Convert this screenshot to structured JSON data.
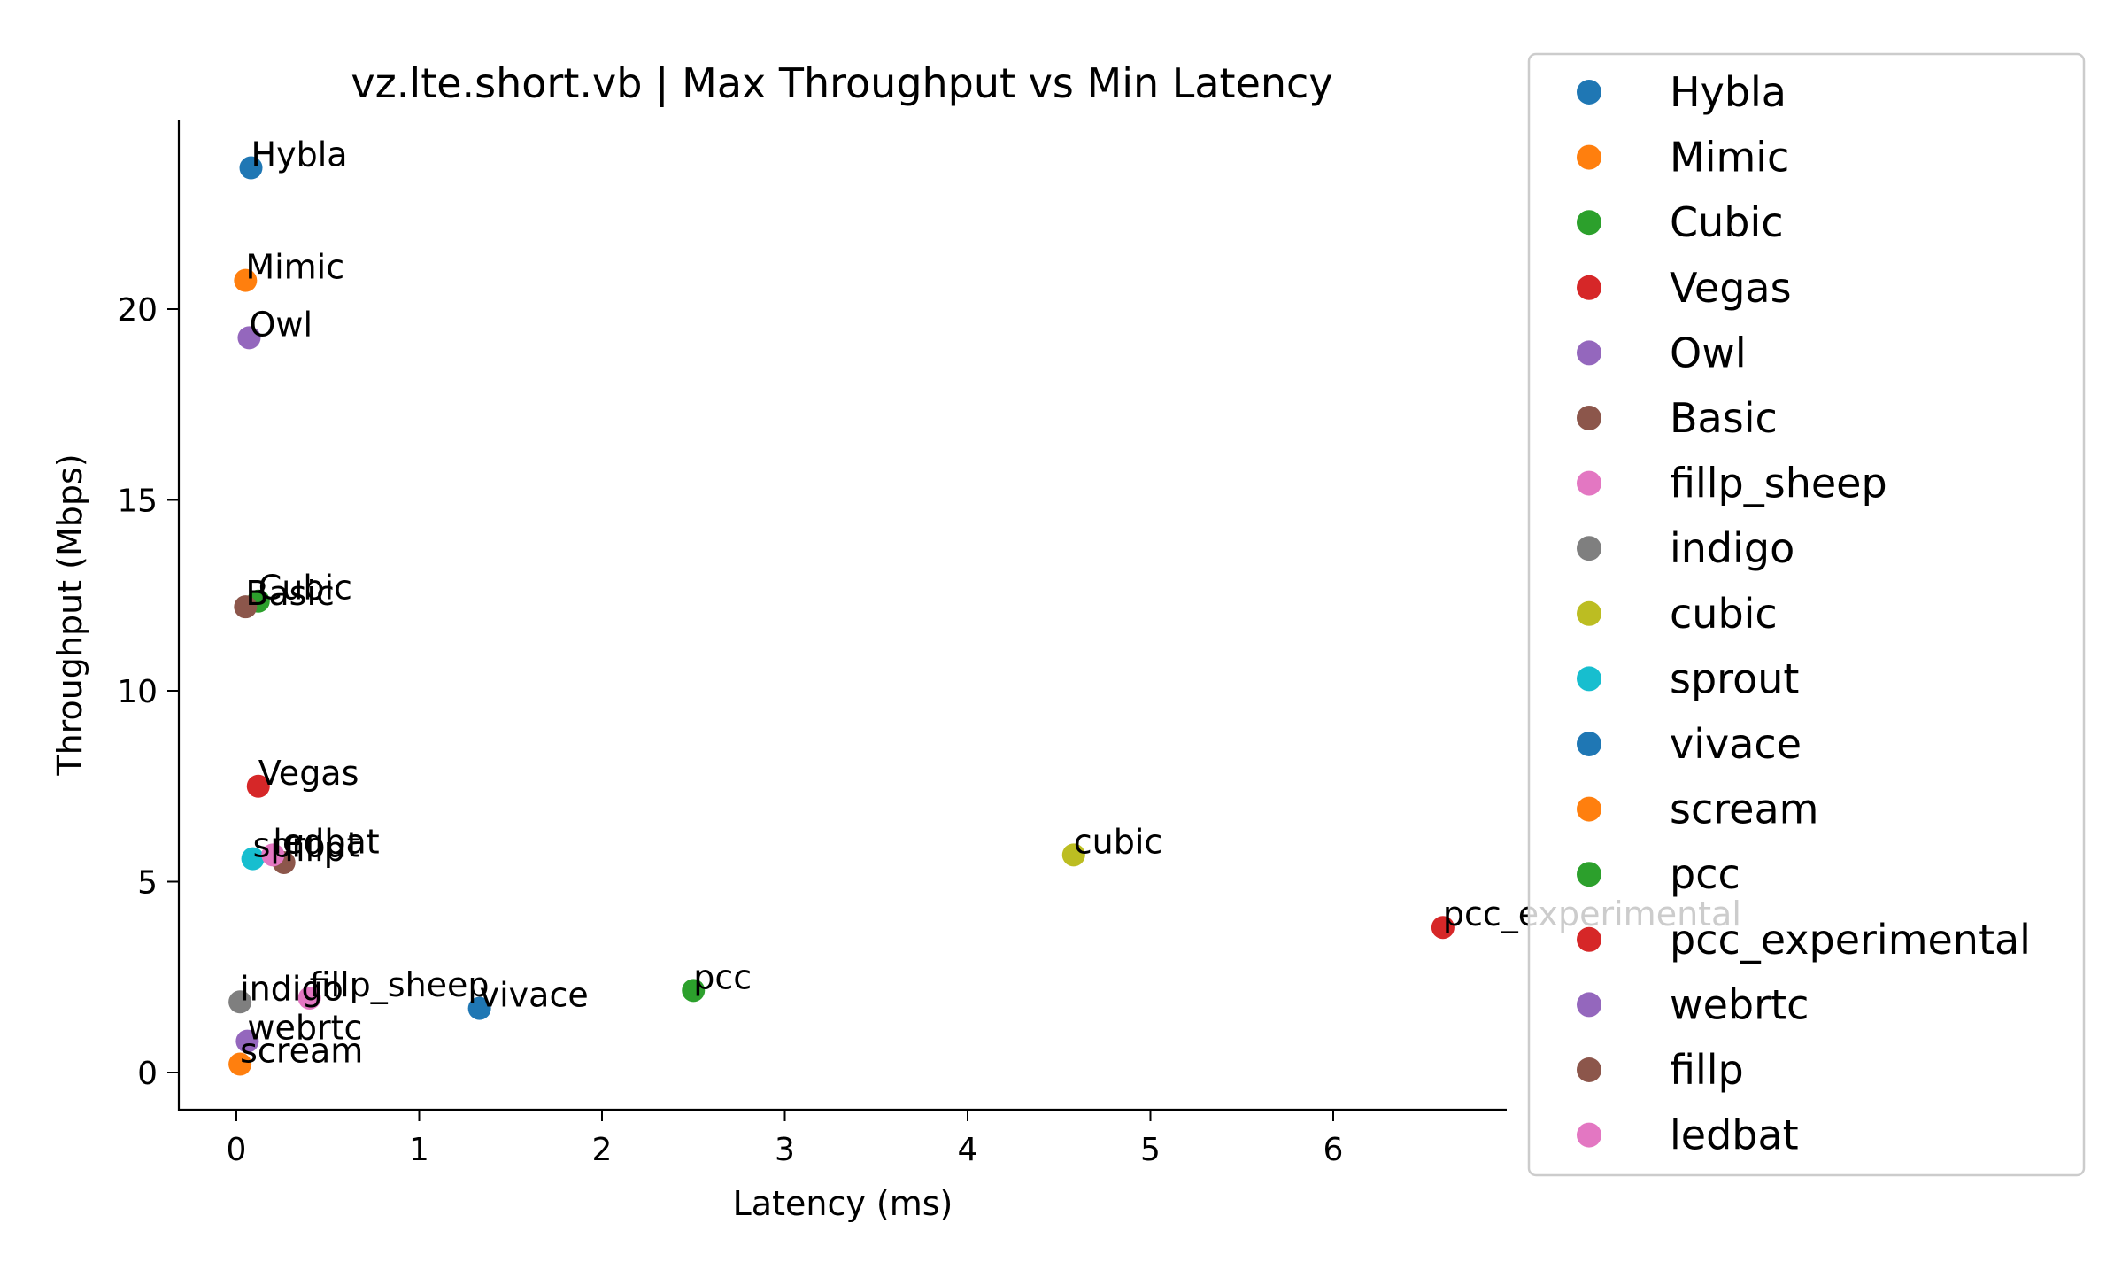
{
  "chart_data": {
    "type": "scatter",
    "title": "vz.lte.short.vb | Max Throughput vs Min Latency",
    "xlabel": "Latency (ms)",
    "ylabel": "Throughput (Mbps)",
    "xlim": [
      -0.3,
      6.95
    ],
    "ylim": [
      -0.95,
      25
    ],
    "xticks": [
      "0",
      "1",
      "2",
      "3",
      "4",
      "5",
      "6"
    ],
    "yticks": [
      "0",
      "5",
      "10",
      "15",
      "20"
    ],
    "legend_placement": "outside-right",
    "grid": false,
    "series": [
      {
        "name": "Hybla",
        "color": "#1f77b4",
        "x": 0.08,
        "y": 23.7
      },
      {
        "name": "Mimic",
        "color": "#ff7f0e",
        "x": 0.05,
        "y": 20.75
      },
      {
        "name": "Cubic",
        "color": "#2ca02c",
        "x": 0.12,
        "y": 12.35
      },
      {
        "name": "Vegas",
        "color": "#d62728",
        "x": 0.12,
        "y": 7.5
      },
      {
        "name": "Owl",
        "color": "#9467bd",
        "x": 0.07,
        "y": 19.25
      },
      {
        "name": "Basic",
        "color": "#8c564b",
        "x": 0.05,
        "y": 12.2
      },
      {
        "name": "fillp_sheep",
        "color": "#e377c2",
        "x": 0.4,
        "y": 1.95
      },
      {
        "name": "indigo",
        "color": "#7f7f7f",
        "x": 0.02,
        "y": 1.85
      },
      {
        "name": "cubic",
        "color": "#bcbd22",
        "x": 4.58,
        "y": 5.7
      },
      {
        "name": "sprout",
        "color": "#17becf",
        "x": 0.09,
        "y": 5.6
      },
      {
        "name": "vivace",
        "color": "#1f77b4",
        "x": 1.33,
        "y": 1.68
      },
      {
        "name": "scream",
        "color": "#ff7f0e",
        "x": 0.02,
        "y": 0.22
      },
      {
        "name": "pcc",
        "color": "#2ca02c",
        "x": 2.5,
        "y": 2.15
      },
      {
        "name": "pcc_experimental",
        "color": "#d62728",
        "x": 6.6,
        "y": 3.8
      },
      {
        "name": "webrtc",
        "color": "#9467bd",
        "x": 0.06,
        "y": 0.82
      },
      {
        "name": "fillp",
        "color": "#8c564b",
        "x": 0.26,
        "y": 5.5
      },
      {
        "name": "ledbat",
        "color": "#e377c2",
        "x": 0.2,
        "y": 5.7
      }
    ]
  }
}
